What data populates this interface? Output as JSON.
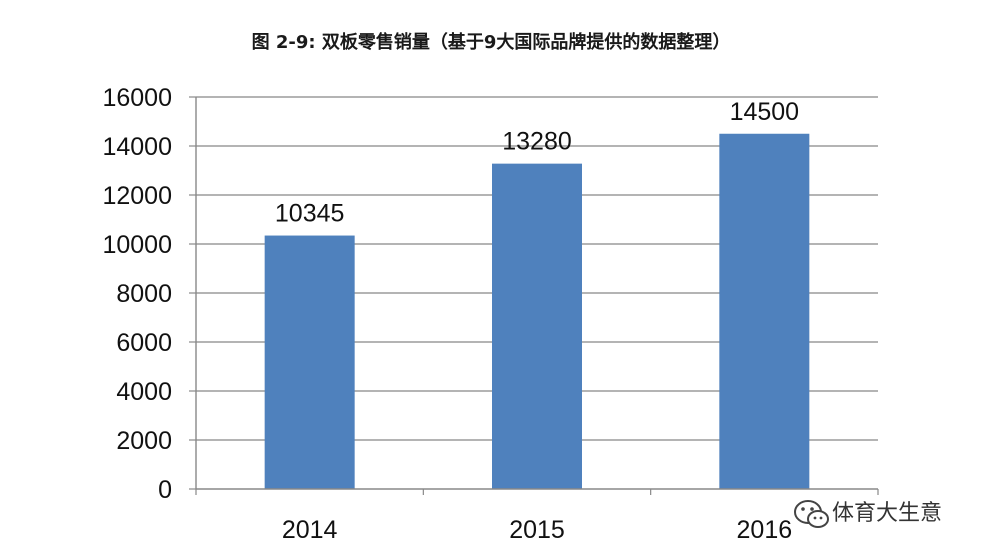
{
  "chart_data": {
    "type": "bar",
    "title": "图 2-9: 双板零售销量（基于9大国际品牌提供的数据整理）",
    "categories": [
      "2014",
      "2015",
      "2016"
    ],
    "values": [
      10345,
      13280,
      14500
    ],
    "data_labels": [
      "10345",
      "13280",
      "14500"
    ],
    "y_ticks": [
      0,
      2000,
      4000,
      6000,
      8000,
      10000,
      12000,
      14000,
      16000
    ],
    "ylim": [
      0,
      16000
    ],
    "xlabel": "",
    "ylabel": "",
    "grid": true,
    "legend": "none",
    "colors": {
      "bar": "#4f81bd",
      "grid": "#888888",
      "axis": "#888888",
      "text": "#111111"
    }
  },
  "watermark": {
    "text": "体育大生意",
    "icon": "wechat-logo-icon"
  }
}
